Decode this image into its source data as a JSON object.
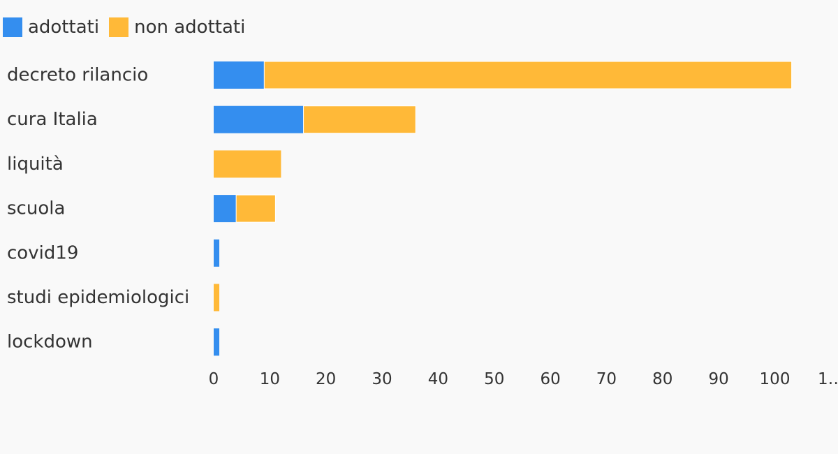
{
  "chart_data": {
    "type": "bar",
    "orientation": "horizontal",
    "stacked": true,
    "categories": [
      "decreto rilancio",
      "cura Italia",
      "liquità",
      "scuola",
      "covid19",
      "studi epidemiologici",
      "lockdown"
    ],
    "series": [
      {
        "name": "adottati",
        "color": "#348eef",
        "values": [
          9,
          16,
          0,
          4,
          1,
          0,
          1
        ]
      },
      {
        "name": "non adottati",
        "color": "#ffb938",
        "values": [
          94,
          20,
          12,
          7,
          0,
          1,
          0
        ]
      }
    ],
    "xlim": [
      0,
      110
    ],
    "xticks": [
      "0",
      "10",
      "20",
      "30",
      "40",
      "50",
      "60",
      "70",
      "80",
      "90",
      "100",
      "1…"
    ],
    "grid": false,
    "legend_position": "top-left"
  }
}
